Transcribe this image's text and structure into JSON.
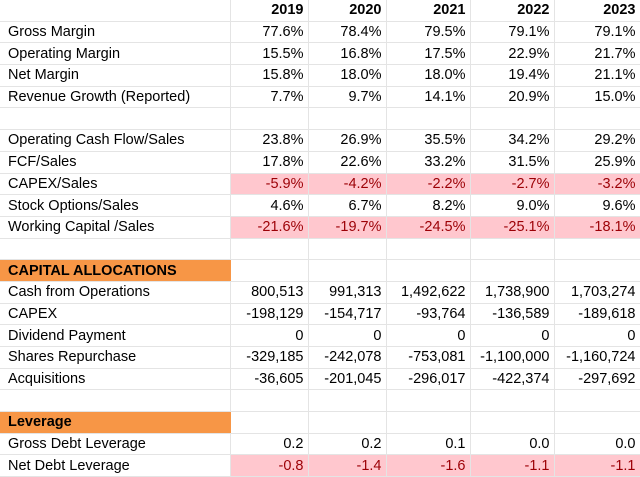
{
  "years": [
    "2019",
    "2020",
    "2021",
    "2022",
    "2023"
  ],
  "margins": [
    {
      "label": "Gross Margin",
      "values": [
        "77.6%",
        "78.4%",
        "79.5%",
        "79.1%",
        "79.1%"
      ],
      "negative": false
    },
    {
      "label": "Operating Margin",
      "values": [
        "15.5%",
        "16.8%",
        "17.5%",
        "22.9%",
        "21.7%"
      ],
      "negative": false
    },
    {
      "label": "Net Margin",
      "values": [
        "15.8%",
        "18.0%",
        "18.0%",
        "19.4%",
        "21.1%"
      ],
      "negative": false
    },
    {
      "label": "Revenue Growth (Reported)",
      "values": [
        "7.7%",
        "9.7%",
        "14.1%",
        "20.9%",
        "15.0%"
      ],
      "negative": false
    }
  ],
  "cashflow_ratios": [
    {
      "label": "Operating Cash Flow/Sales",
      "values": [
        "23.8%",
        "26.9%",
        "35.5%",
        "34.2%",
        "29.2%"
      ],
      "negative": false
    },
    {
      "label": "FCF/Sales",
      "values": [
        "17.8%",
        "22.6%",
        "33.2%",
        "31.5%",
        "25.9%"
      ],
      "negative": false
    },
    {
      "label": "CAPEX/Sales",
      "values": [
        "-5.9%",
        "-4.2%",
        "-2.2%",
        "-2.7%",
        "-3.2%"
      ],
      "negative": true
    },
    {
      "label": "Stock Options/Sales",
      "values": [
        "4.6%",
        "6.7%",
        "8.2%",
        "9.0%",
        "9.6%"
      ],
      "negative": false
    },
    {
      "label": "Working Capital /Sales",
      "values": [
        "-21.6%",
        "-19.7%",
        "-24.5%",
        "-25.1%",
        "-18.1%"
      ],
      "negative": true
    }
  ],
  "capital_allocations": {
    "title": "CAPITAL ALLOCATIONS",
    "rows": [
      {
        "label": "Cash from Operations",
        "values": [
          "800,513",
          "991,313",
          "1,492,622",
          "1,738,900",
          "1,703,274"
        ],
        "negative": false
      },
      {
        "label": "CAPEX",
        "values": [
          "-198,129",
          "-154,717",
          "-93,764",
          "-136,589",
          "-189,618"
        ],
        "negative": false
      },
      {
        "label": "Dividend Payment",
        "values": [
          "0",
          "0",
          "0",
          "0",
          "0"
        ],
        "negative": false
      },
      {
        "label": "Shares Repurchase",
        "values": [
          "-329,185",
          "-242,078",
          "-753,081",
          "-1,100,000",
          "-1,160,724"
        ],
        "negative": false
      },
      {
        "label": "Acquisitions",
        "values": [
          "-36,605",
          "-201,045",
          "-296,017",
          "-422,374",
          "-297,692"
        ],
        "negative": false
      }
    ]
  },
  "leverage": {
    "title": "Leverage",
    "rows": [
      {
        "label": "Gross Debt Leverage",
        "values": [
          "0.2",
          "0.2",
          "0.1",
          "0.0",
          "0.0"
        ],
        "negative": false
      },
      {
        "label": "Net Debt Leverage",
        "values": [
          "-0.8",
          "-1.4",
          "-1.6",
          "-1.1",
          "-1.1"
        ],
        "negative": true
      }
    ]
  }
}
